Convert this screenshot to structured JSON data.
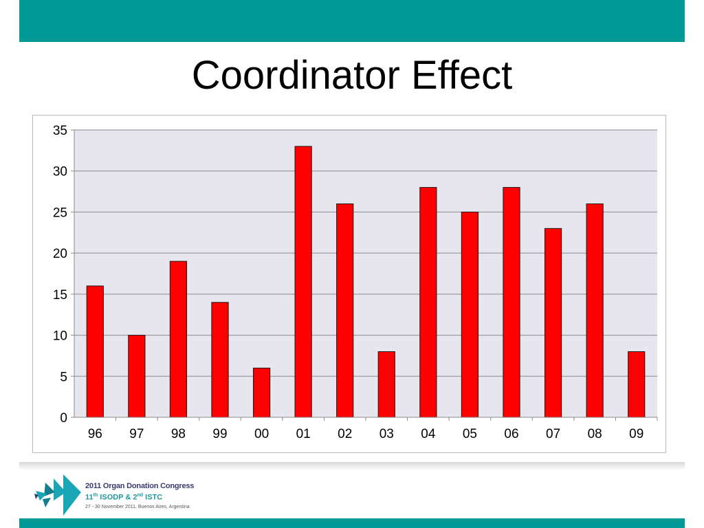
{
  "slide": {
    "title": "Coordinator Effect"
  },
  "footer": {
    "congress_name": "2011 Organ Donation Congress",
    "edition_num1": "11",
    "edition_sup1": "th",
    "edition_mid": " ISODP & 2",
    "edition_sup2": "nd",
    "edition_end": " ISTC",
    "dates": "27 - 30 November 2011, Buenos Aires, Argentina",
    "logo_icon": "congress-logo-icon"
  },
  "colors": {
    "band": "#009a96",
    "bar_fill": "#ff0000",
    "bar_stroke": "#1a1a1a",
    "plot_bg": "#e7e6ee"
  },
  "chart_data": {
    "type": "bar",
    "categories": [
      "96",
      "97",
      "98",
      "99",
      "00",
      "01",
      "02",
      "03",
      "04",
      "05",
      "06",
      "07",
      "08",
      "09"
    ],
    "values": [
      16,
      10,
      19,
      14,
      6,
      33,
      26,
      8,
      28,
      25,
      28,
      23,
      26,
      8
    ],
    "ylim": [
      0,
      35
    ],
    "yticks": [
      "0",
      "5",
      "10",
      "15",
      "20",
      "25",
      "30",
      "35"
    ],
    "grid": true,
    "legend": "none"
  }
}
